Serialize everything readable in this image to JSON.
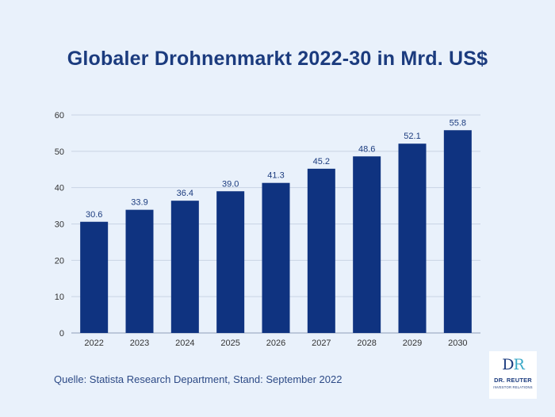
{
  "chart_data": {
    "type": "bar",
    "title": "Globaler Drohnenmarkt 2022-30 in Mrd. US$",
    "categories": [
      "2022",
      "2023",
      "2024",
      "2025",
      "2026",
      "2027",
      "2028",
      "2029",
      "2030"
    ],
    "values": [
      30.6,
      33.9,
      36.4,
      39.0,
      41.3,
      45.2,
      48.6,
      52.1,
      55.8
    ],
    "value_labels": [
      "30.6",
      "33.9",
      "36.4",
      "39.0",
      "41.3",
      "45.2",
      "48.6",
      "52.1",
      "55.8"
    ],
    "ylim": [
      0,
      60
    ],
    "yticks": [
      0,
      10,
      20,
      30,
      40,
      50,
      60
    ],
    "grid": true,
    "bar_color": "#0f3380"
  },
  "source": "Quelle: Statista Research Department, Stand: September 2022",
  "logo": {
    "mark_d": "D",
    "mark_r": "R",
    "name": "DR. REUTER",
    "subtitle": "INVESTOR RELATIONS"
  }
}
